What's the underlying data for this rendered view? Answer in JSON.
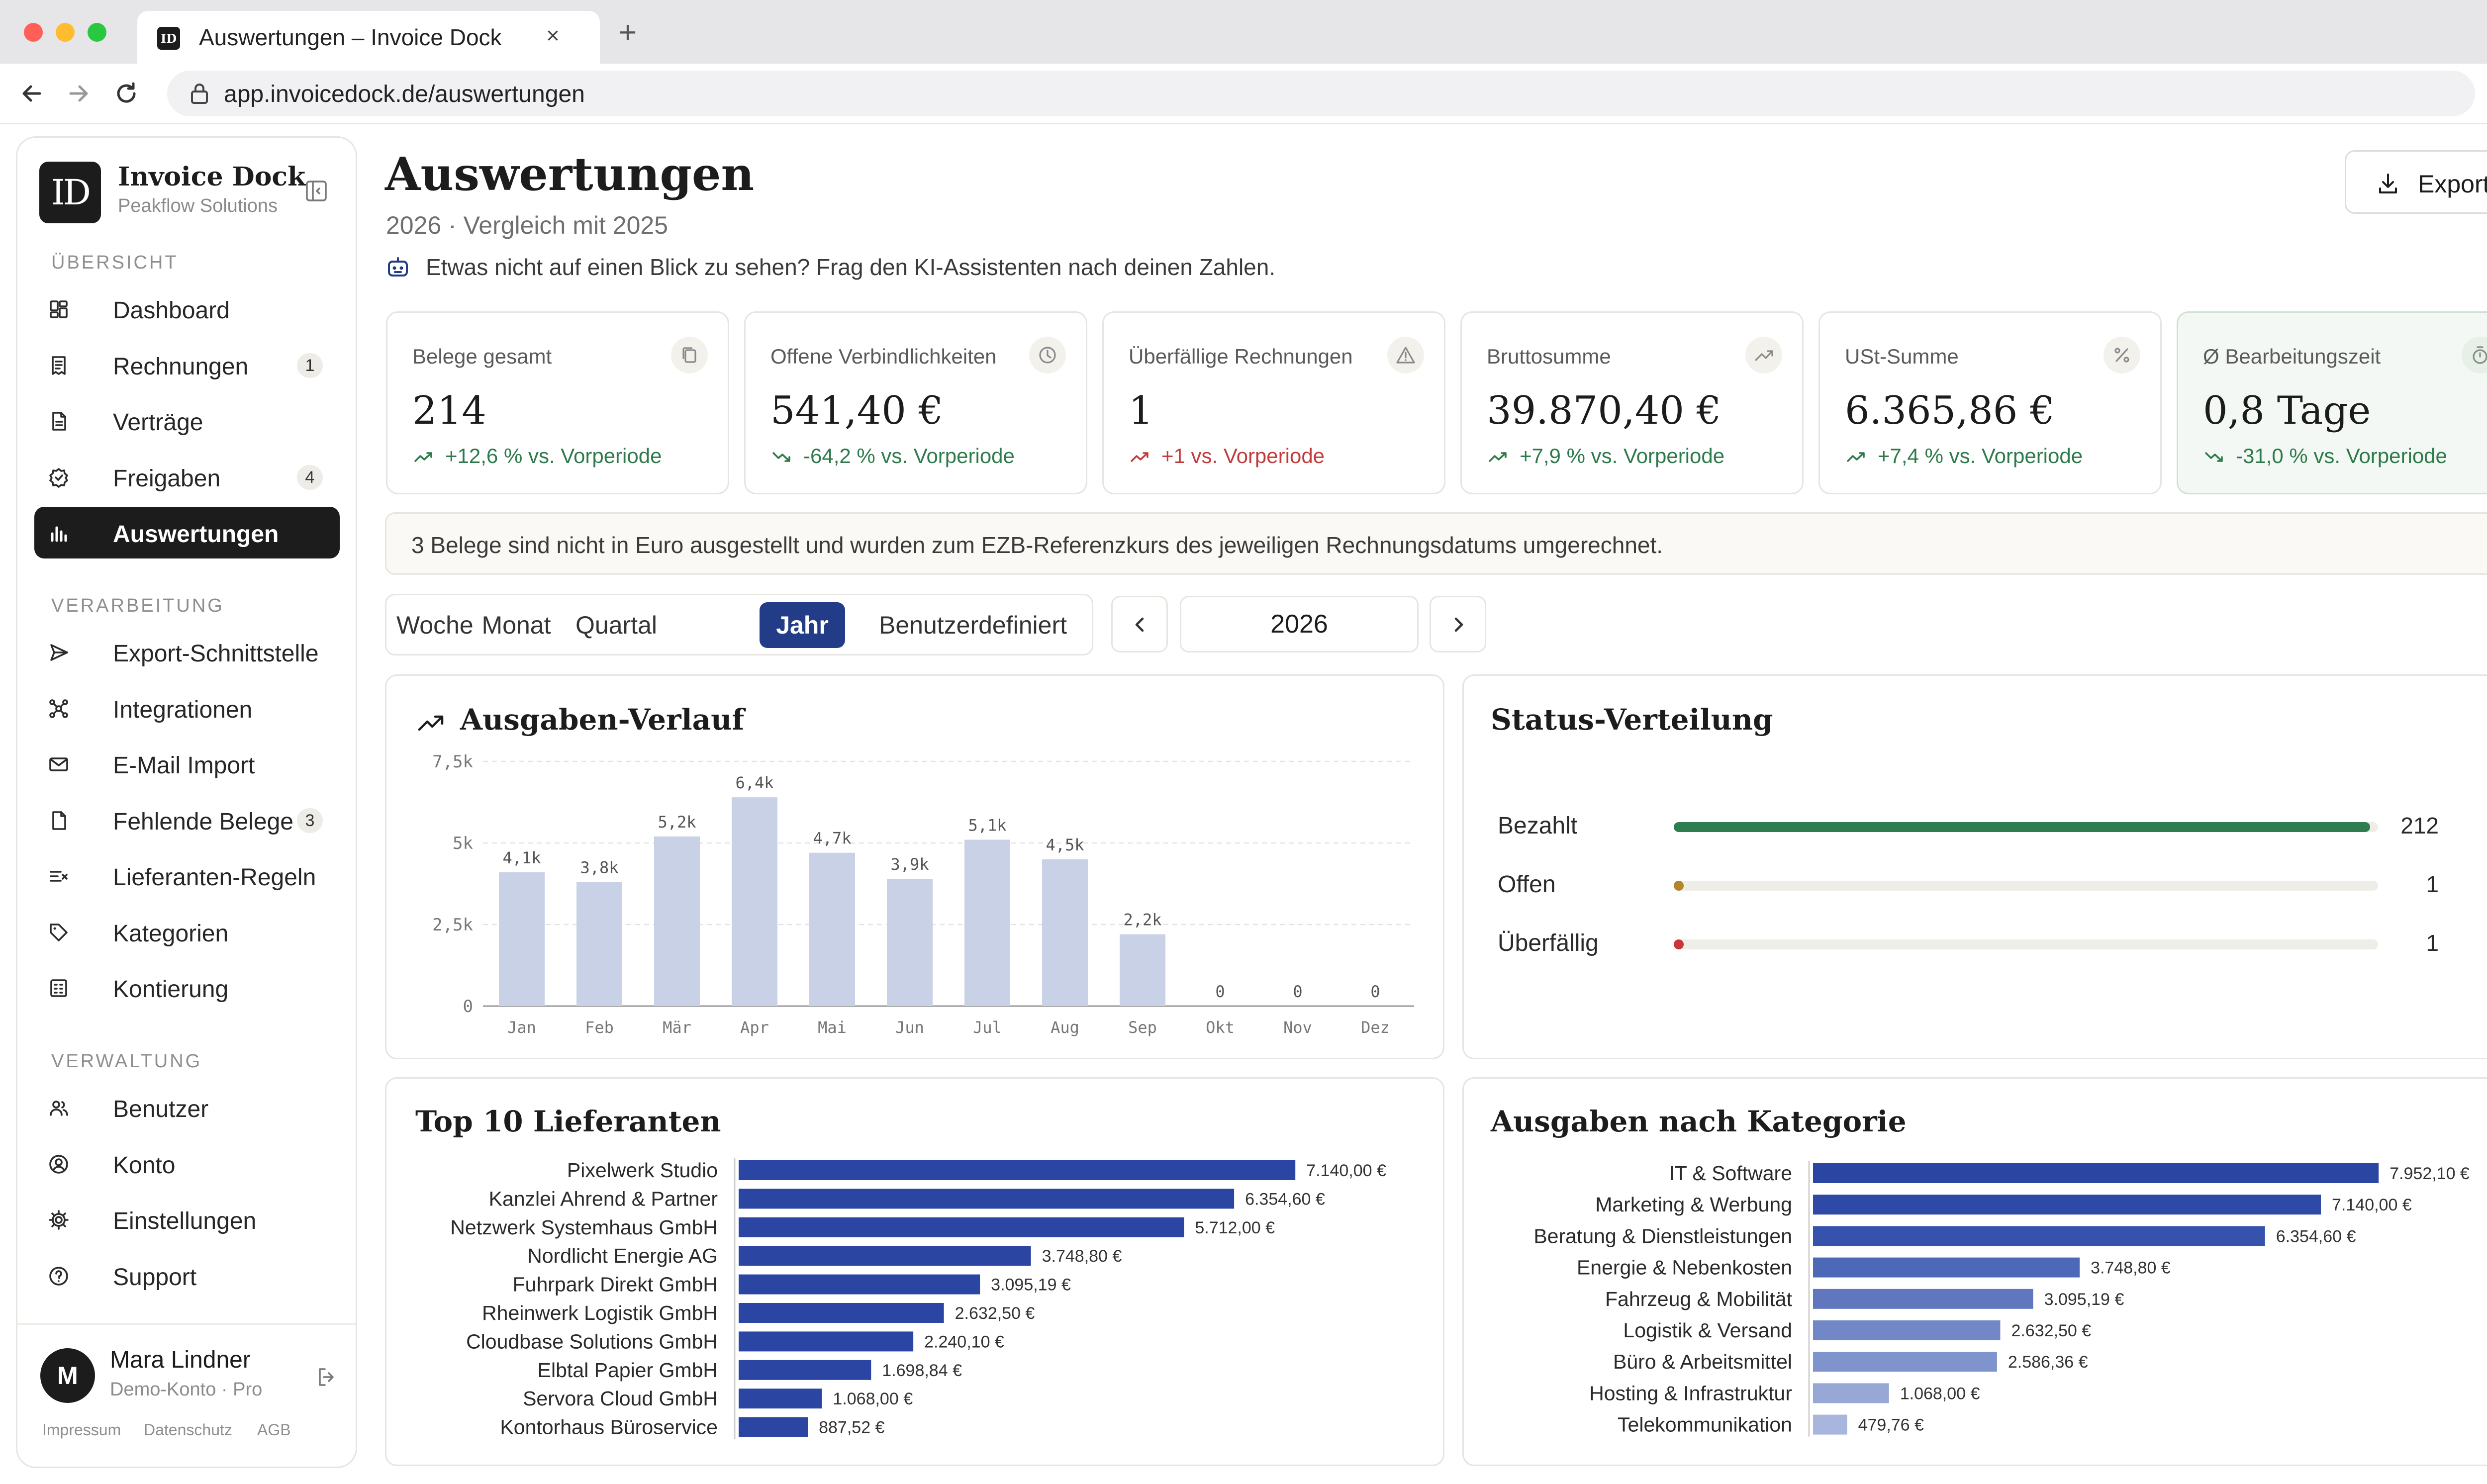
{
  "browser": {
    "tab_title": "Auswertungen – Invoice Dock",
    "tab_favicon": "ID",
    "url": "app.invoicedock.de/auswertungen",
    "new_tab": "+",
    "close": "×"
  },
  "sidebar": {
    "logo": "ID",
    "brand": "Invoice Dock",
    "org": "Peakflow Solutions",
    "sections": [
      {
        "label": "ÜBERSICHT",
        "items": [
          {
            "label": "Dashboard",
            "icon": "dashboard-icon",
            "badge": ""
          },
          {
            "label": "Rechnungen",
            "icon": "invoice-icon",
            "badge": "1"
          },
          {
            "label": "Verträge",
            "icon": "contract-icon",
            "badge": ""
          },
          {
            "label": "Freigaben",
            "icon": "approval-icon",
            "badge": "4"
          },
          {
            "label": "Auswertungen",
            "icon": "bar-chart-icon",
            "badge": "",
            "active": true
          }
        ]
      },
      {
        "label": "VERARBEITUNG",
        "items": [
          {
            "label": "Export-Schnittstelle",
            "icon": "send-icon",
            "badge": ""
          },
          {
            "label": "Integrationen",
            "icon": "integrations-icon",
            "badge": ""
          },
          {
            "label": "E-Mail Import",
            "icon": "mail-icon",
            "badge": ""
          },
          {
            "label": "Fehlende Belege",
            "icon": "file-icon",
            "badge": "3"
          },
          {
            "label": "Lieferanten-Regeln",
            "icon": "rules-icon",
            "badge": ""
          },
          {
            "label": "Kategorien",
            "icon": "tag-icon",
            "badge": ""
          },
          {
            "label": "Kontierung",
            "icon": "ledger-icon",
            "badge": ""
          }
        ]
      },
      {
        "label": "VERWALTUNG",
        "items": [
          {
            "label": "Benutzer",
            "icon": "users-icon",
            "badge": ""
          },
          {
            "label": "Konto",
            "icon": "account-icon",
            "badge": ""
          },
          {
            "label": "Einstellungen",
            "icon": "gear-icon",
            "badge": ""
          },
          {
            "label": "Support",
            "icon": "help-icon",
            "badge": ""
          }
        ]
      }
    ],
    "user": {
      "initial": "M",
      "name": "Mara Lindner",
      "plan": "Demo-Konto · Pro"
    },
    "footer_links": [
      "Impressum",
      "Datenschutz",
      "AGB"
    ]
  },
  "header": {
    "title": "Auswertungen",
    "subtitle": "2026 · Vergleich mit 2025",
    "ai_hint": "Etwas nicht auf einen Blick zu sehen? Frag den KI-Assistenten nach deinen Zahlen.",
    "export_label": "Export"
  },
  "kpis": [
    {
      "label": "Belege gesamt",
      "value": "214",
      "trend": "+12,6 % vs. Vorperiode",
      "trend_dir": "up",
      "tone": "pos",
      "icon": "copy-icon"
    },
    {
      "label": "Offene Verbindlichkeiten",
      "value": "541,40 €",
      "trend": "-64,2 % vs. Vorperiode",
      "trend_dir": "down",
      "tone": "pos",
      "icon": "clock-icon"
    },
    {
      "label": "Überfällige Rechnungen",
      "value": "1",
      "trend": "+1 vs. Vorperiode",
      "trend_dir": "up",
      "tone": "neg",
      "icon": "warning-icon"
    },
    {
      "label": "Bruttosumme",
      "value": "39.870,40 €",
      "trend": "+7,9 % vs. Vorperiode",
      "trend_dir": "up",
      "tone": "pos",
      "icon": "trend-up-icon"
    },
    {
      "label": "USt-Summe",
      "value": "6.365,86 €",
      "trend": "+7,4 % vs. Vorperiode",
      "trend_dir": "up",
      "tone": "pos",
      "icon": "percent-icon"
    },
    {
      "label": "Ø Bearbeitungszeit",
      "value": "0,8 Tage",
      "trend": "-31,0 % vs. Vorperiode",
      "trend_dir": "down",
      "tone": "pos",
      "icon": "timer-icon",
      "highlight": true
    }
  ],
  "fx_notice": "3 Belege sind nicht in Euro ausgestellt und wurden zum EZB-Referenzkurs des jeweiligen Rechnungsdatums umgerechnet.",
  "period": {
    "tabs": [
      "Woche",
      "Monat",
      "Quartal",
      "Jahr",
      "Benutzerdefiniert"
    ],
    "active": "Jahr",
    "year": "2026"
  },
  "colors": {
    "accent": "#233c87",
    "bar_month": "#c9d1e6",
    "status_paid": "#2e7d4f",
    "status_open": "#b5852a",
    "status_overdue": "#c8353d"
  },
  "chart_data": [
    {
      "type": "bar",
      "title": "Ausgaben-Verlauf",
      "categories": [
        "Jan",
        "Feb",
        "Mär",
        "Apr",
        "Mai",
        "Jun",
        "Jul",
        "Aug",
        "Sep",
        "Okt",
        "Nov",
        "Dez"
      ],
      "values": [
        4100,
        3800,
        5200,
        6400,
        4700,
        3900,
        5100,
        4500,
        2200,
        0,
        0,
        0
      ],
      "data_labels": [
        "4,1k",
        "3,8k",
        "5,2k",
        "6,4k",
        "4,7k",
        "3,9k",
        "5,1k",
        "4,5k",
        "2,2k",
        "0",
        "0",
        "0"
      ],
      "ylim": [
        0,
        7500
      ],
      "yticks": [
        0,
        2500,
        5000,
        7500
      ],
      "ytick_labels": [
        "0",
        "2,5k",
        "5k",
        "7,5k"
      ],
      "grid": true
    },
    {
      "type": "bar",
      "orientation": "horizontal",
      "title": "Top 10 Lieferanten",
      "categories": [
        "Pixelwerk Studio",
        "Kanzlei Ahrend & Partner",
        "Netzwerk Systemhaus GmbH",
        "Nordlicht Energie AG",
        "Fuhrpark Direkt GmbH",
        "Rheinwerk Logistik GmbH",
        "Cloudbase Solutions GmbH",
        "Elbtal Papier GmbH",
        "Servora Cloud GmbH",
        "Kontorhaus Büroservice"
      ],
      "values": [
        7140.0,
        6354.6,
        5712.0,
        3748.8,
        3095.19,
        2632.5,
        2240.1,
        1698.84,
        1068.0,
        887.52
      ],
      "data_labels": [
        "7.140,00 €",
        "6.354,60 €",
        "5.712,00 €",
        "3.748,80 €",
        "3.095,19 €",
        "2.632,50 €",
        "2.240,10 €",
        "1.698,84 €",
        "1.068,00 €",
        "887,52 €"
      ],
      "xlim": [
        0,
        8000
      ]
    },
    {
      "type": "bar",
      "title": "Status-Verteilung",
      "categories": [
        "Bezahlt",
        "Offen",
        "Überfällig"
      ],
      "values": [
        212,
        1,
        1
      ]
    },
    {
      "type": "bar",
      "orientation": "horizontal",
      "title": "Ausgaben nach Kategorie",
      "categories": [
        "IT & Software",
        "Marketing & Werbung",
        "Beratung & Dienstleistungen",
        "Energie & Nebenkosten",
        "Fahrzeug & Mobilität",
        "Logistik & Versand",
        "Büro & Arbeitsmittel",
        "Hosting & Infrastruktur",
        "Telekommunikation"
      ],
      "values": [
        7952.1,
        7140.0,
        6354.6,
        3748.8,
        3095.19,
        2632.5,
        2586.36,
        1068.0,
        479.76
      ],
      "data_labels": [
        "7.952,10 €",
        "7.140,00 €",
        "6.354,60 €",
        "3.748,80 €",
        "3.095,19 €",
        "2.632,50 €",
        "2.586,36 €",
        "1.068,00 €",
        "479,76 €"
      ],
      "xlim": [
        0,
        8000
      ]
    }
  ]
}
